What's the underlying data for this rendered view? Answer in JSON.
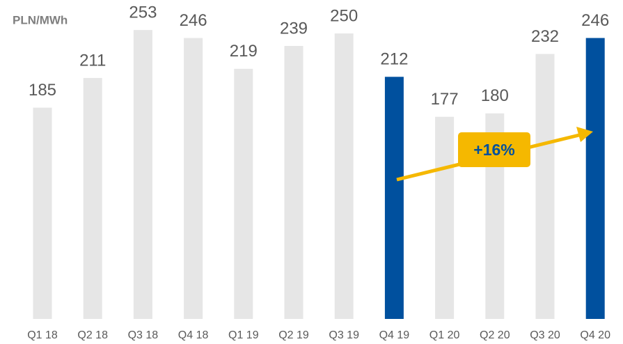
{
  "chart_data": {
    "type": "bar",
    "unit_label": "PLN/MWh",
    "categories": [
      "Q1 18",
      "Q2 18",
      "Q3 18",
      "Q4 18",
      "Q1 19",
      "Q2 19",
      "Q3 19",
      "Q4 19",
      "Q1 20",
      "Q2 20",
      "Q3 20",
      "Q4 20"
    ],
    "values": [
      185,
      211,
      253,
      246,
      219,
      239,
      250,
      212,
      177,
      180,
      232,
      246
    ],
    "colors": [
      "#e6e6e6",
      "#e6e6e6",
      "#e6e6e6",
      "#e6e6e6",
      "#e6e6e6",
      "#e6e6e6",
      "#e6e6e6",
      "#00509e",
      "#e6e6e6",
      "#e6e6e6",
      "#e6e6e6",
      "#00509e"
    ],
    "ylim": [
      0,
      275
    ],
    "annotation": "+16%"
  }
}
